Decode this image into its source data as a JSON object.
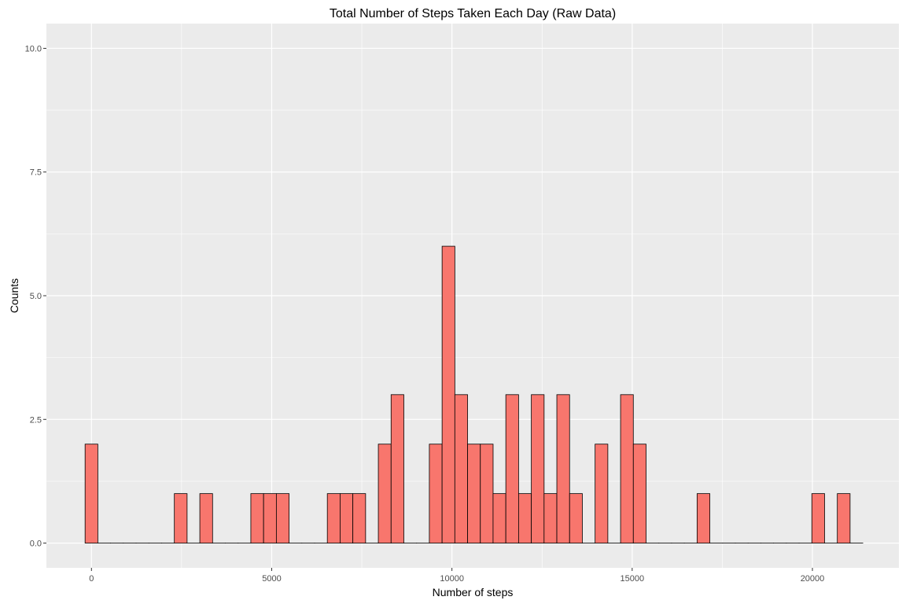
{
  "chart_data": {
    "type": "bar",
    "title": "Total Number of Steps Taken Each Day (Raw Data)",
    "xlabel": "Number of steps",
    "ylabel": "Counts",
    "xlim": [
      -1250,
      22400
    ],
    "ylim": [
      -0.5,
      10.5
    ],
    "x_ticks": [
      0,
      5000,
      10000,
      15000,
      20000
    ],
    "x_tick_labels": [
      "0",
      "5000",
      "10000",
      "15000",
      "20000"
    ],
    "y_ticks": [
      0,
      2.5,
      5,
      7.5,
      10
    ],
    "y_tick_labels": [
      "0.0",
      "2.5",
      "5.0",
      "7.5",
      "10.0"
    ],
    "bin_width": 353.7,
    "bins_x": [
      0,
      354,
      707,
      1061,
      1415,
      1769,
      2122,
      2476,
      2830,
      3183,
      3537,
      3891,
      4244,
      4598,
      4952,
      5306,
      5659,
      6013,
      6367,
      6720,
      7074,
      7428,
      7781,
      8135,
      8489,
      8843,
      9196,
      9550,
      9904,
      10257,
      10611,
      10965,
      11318,
      11672,
      12026,
      12380,
      12733,
      13087,
      13441,
      13794,
      14148,
      14502,
      14855,
      15209,
      15563,
      15917,
      16270,
      16624,
      16978,
      17331,
      17685,
      18039,
      18392,
      18746,
      19100,
      19453,
      19807,
      20161,
      20515,
      20868,
      21222
    ],
    "counts": [
      2,
      0,
      0,
      0,
      0,
      0,
      0,
      1,
      0,
      1,
      0,
      0,
      0,
      1,
      1,
      1,
      0,
      0,
      0,
      1,
      1,
      1,
      0,
      2,
      3,
      0,
      0,
      2,
      6,
      3,
      2,
      2,
      1,
      3,
      1,
      3,
      1,
      3,
      1,
      0,
      2,
      0,
      3,
      2,
      0,
      0,
      0,
      0,
      1,
      0,
      0,
      0,
      0,
      0,
      0,
      0,
      0,
      1,
      0,
      1,
      0
    ],
    "bar_fill": "#f8766d",
    "bar_outline": "#000000",
    "panel_background": "#ebebeb",
    "grid": true,
    "grid_color": "#ffffff"
  }
}
